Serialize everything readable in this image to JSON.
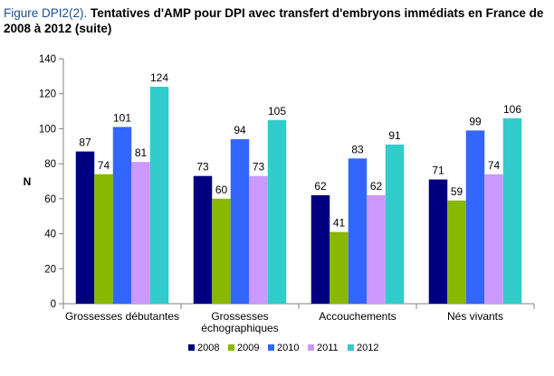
{
  "title": {
    "figure": "Figure DPI2(2).",
    "text": "Tentatives d'AMP pour DPI avec transfert d'embryons immédiats en France de 2008 à 2012 (suite)"
  },
  "chart_data": {
    "type": "bar",
    "ylabel": "N",
    "xlabel": "",
    "ylim": [
      0,
      140
    ],
    "yticks": [
      0,
      20,
      40,
      60,
      80,
      100,
      120,
      140
    ],
    "grid": false,
    "legend_position": "bottom",
    "categories": [
      [
        "Grossesses débutantes"
      ],
      [
        "Grossesses",
        "échographiques"
      ],
      [
        "Accouchements"
      ],
      [
        "Nés vivants"
      ]
    ],
    "series": [
      {
        "name": "2008",
        "color": "#000080",
        "values": [
          87,
          73,
          62,
          71
        ]
      },
      {
        "name": "2009",
        "color": "#8ab800",
        "values": [
          74,
          60,
          41,
          59
        ]
      },
      {
        "name": "2010",
        "color": "#3366ff",
        "values": [
          101,
          94,
          83,
          99
        ]
      },
      {
        "name": "2011",
        "color": "#cc99ff",
        "values": [
          81,
          73,
          62,
          74
        ]
      },
      {
        "name": "2012",
        "color": "#33cccc",
        "values": [
          124,
          105,
          91,
          106
        ]
      }
    ]
  }
}
